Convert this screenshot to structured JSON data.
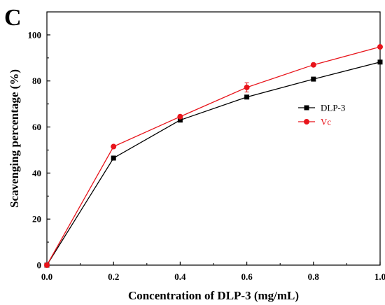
{
  "panel_label": "C",
  "chart_data": {
    "type": "line",
    "title": "",
    "xlabel": "Concentration of DLP-3 (mg/mL)",
    "ylabel": "Scavenging percentage (%)",
    "xlim": [
      0.0,
      1.0
    ],
    "ylim": [
      0,
      110
    ],
    "x": [
      0.0,
      0.2,
      0.4,
      0.6,
      0.8,
      1.0
    ],
    "xticks": [
      "0.0",
      "0.2",
      "0.4",
      "0.6",
      "0.8",
      "1.0"
    ],
    "yticks": [
      "0",
      "20",
      "40",
      "60",
      "80",
      "100"
    ],
    "grid": false,
    "legend_position": "right",
    "series": [
      {
        "name": "DLP-3",
        "marker": "square",
        "color": "#000000",
        "values": [
          0,
          46.5,
          63,
          73,
          80.8,
          88.2
        ]
      },
      {
        "name": "Vc",
        "marker": "circle",
        "color": "#e8141b",
        "values": [
          0,
          51.5,
          64.5,
          77.2,
          87,
          94.8
        ],
        "error": [
          0,
          0.6,
          0.6,
          2,
          0.6,
          0.6
        ]
      }
    ]
  }
}
